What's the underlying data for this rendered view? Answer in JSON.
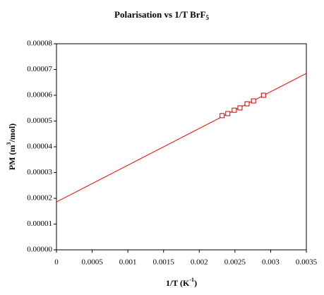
{
  "chart_data": {
    "type": "scatter",
    "title": [
      "Polarisation vs 1/T BrF",
      "5"
    ],
    "x_label": [
      "1/T (K",
      "-1",
      ")"
    ],
    "y_label": [
      "PM (m",
      "3",
      "/mol)"
    ],
    "series": [
      {
        "color": "#cc0000",
        "x": [
          0.00232,
          0.0024,
          0.00249,
          0.00257,
          0.00267,
          0.00276,
          0.0029
        ],
        "values": [
          5.21e-05,
          5.29e-05,
          5.42e-05,
          5.51e-05,
          5.67e-05,
          5.78e-05,
          6e-05
        ]
      }
    ],
    "trendline": {
      "color": "#ff0000",
      "x": [
        0,
        0.0035
      ],
      "values": [
        1.86e-05,
        6.85e-05
      ]
    },
    "xlim": [
      0,
      0.0035
    ],
    "xticks": [
      0,
      0.0005,
      0.001,
      0.0015,
      0.002,
      0.0025,
      0.003,
      0.0035
    ],
    "ylim": [
      0,
      8e-05
    ],
    "yticks": [
      {
        "value": 0,
        "label": "0.00000"
      },
      {
        "value": 1e-05,
        "label": "0.00001"
      },
      {
        "value": 2e-05,
        "label": "0.00002"
      },
      {
        "value": 3e-05,
        "label": "0.00003"
      },
      {
        "value": 4e-05,
        "label": "0.00004"
      },
      {
        "value": 5e-05,
        "label": "0.00005"
      },
      {
        "value": 6e-05,
        "label": "0.00006"
      },
      {
        "value": 7e-05,
        "label": "0.00007"
      },
      {
        "value": 8e-05,
        "label": "0.00008"
      }
    ]
  }
}
